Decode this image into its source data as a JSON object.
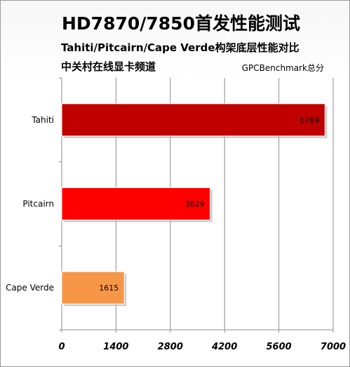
{
  "header": {
    "title": "HD7870/7850首发性能测试",
    "subtitle": "Tahiti/Pitcairn/Cape Verde构架底层性能对比",
    "source": "中关村在线显卡频道",
    "unit": "GPCBenchmark总分"
  },
  "chart_data": {
    "type": "bar",
    "orientation": "horizontal",
    "title": "HD7870/7850首发性能测试",
    "subtitle": "Tahiti/Pitcairn/Cape Verde构架底层性能对比",
    "categories": [
      "Tahiti",
      "Pitcairn",
      "Cape Verde"
    ],
    "values": [
      6789,
      3829,
      1615
    ],
    "value_labels": [
      "6789",
      "3829",
      "1615"
    ],
    "bar_colors": [
      "#c00000",
      "#ff0000",
      "#f79646"
    ],
    "xlim": [
      0,
      7000
    ],
    "xticks": [
      "0",
      "1400",
      "2800",
      "4200",
      "5600",
      "7000"
    ],
    "grid": true,
    "xlabel": "",
    "ylabel": ""
  }
}
